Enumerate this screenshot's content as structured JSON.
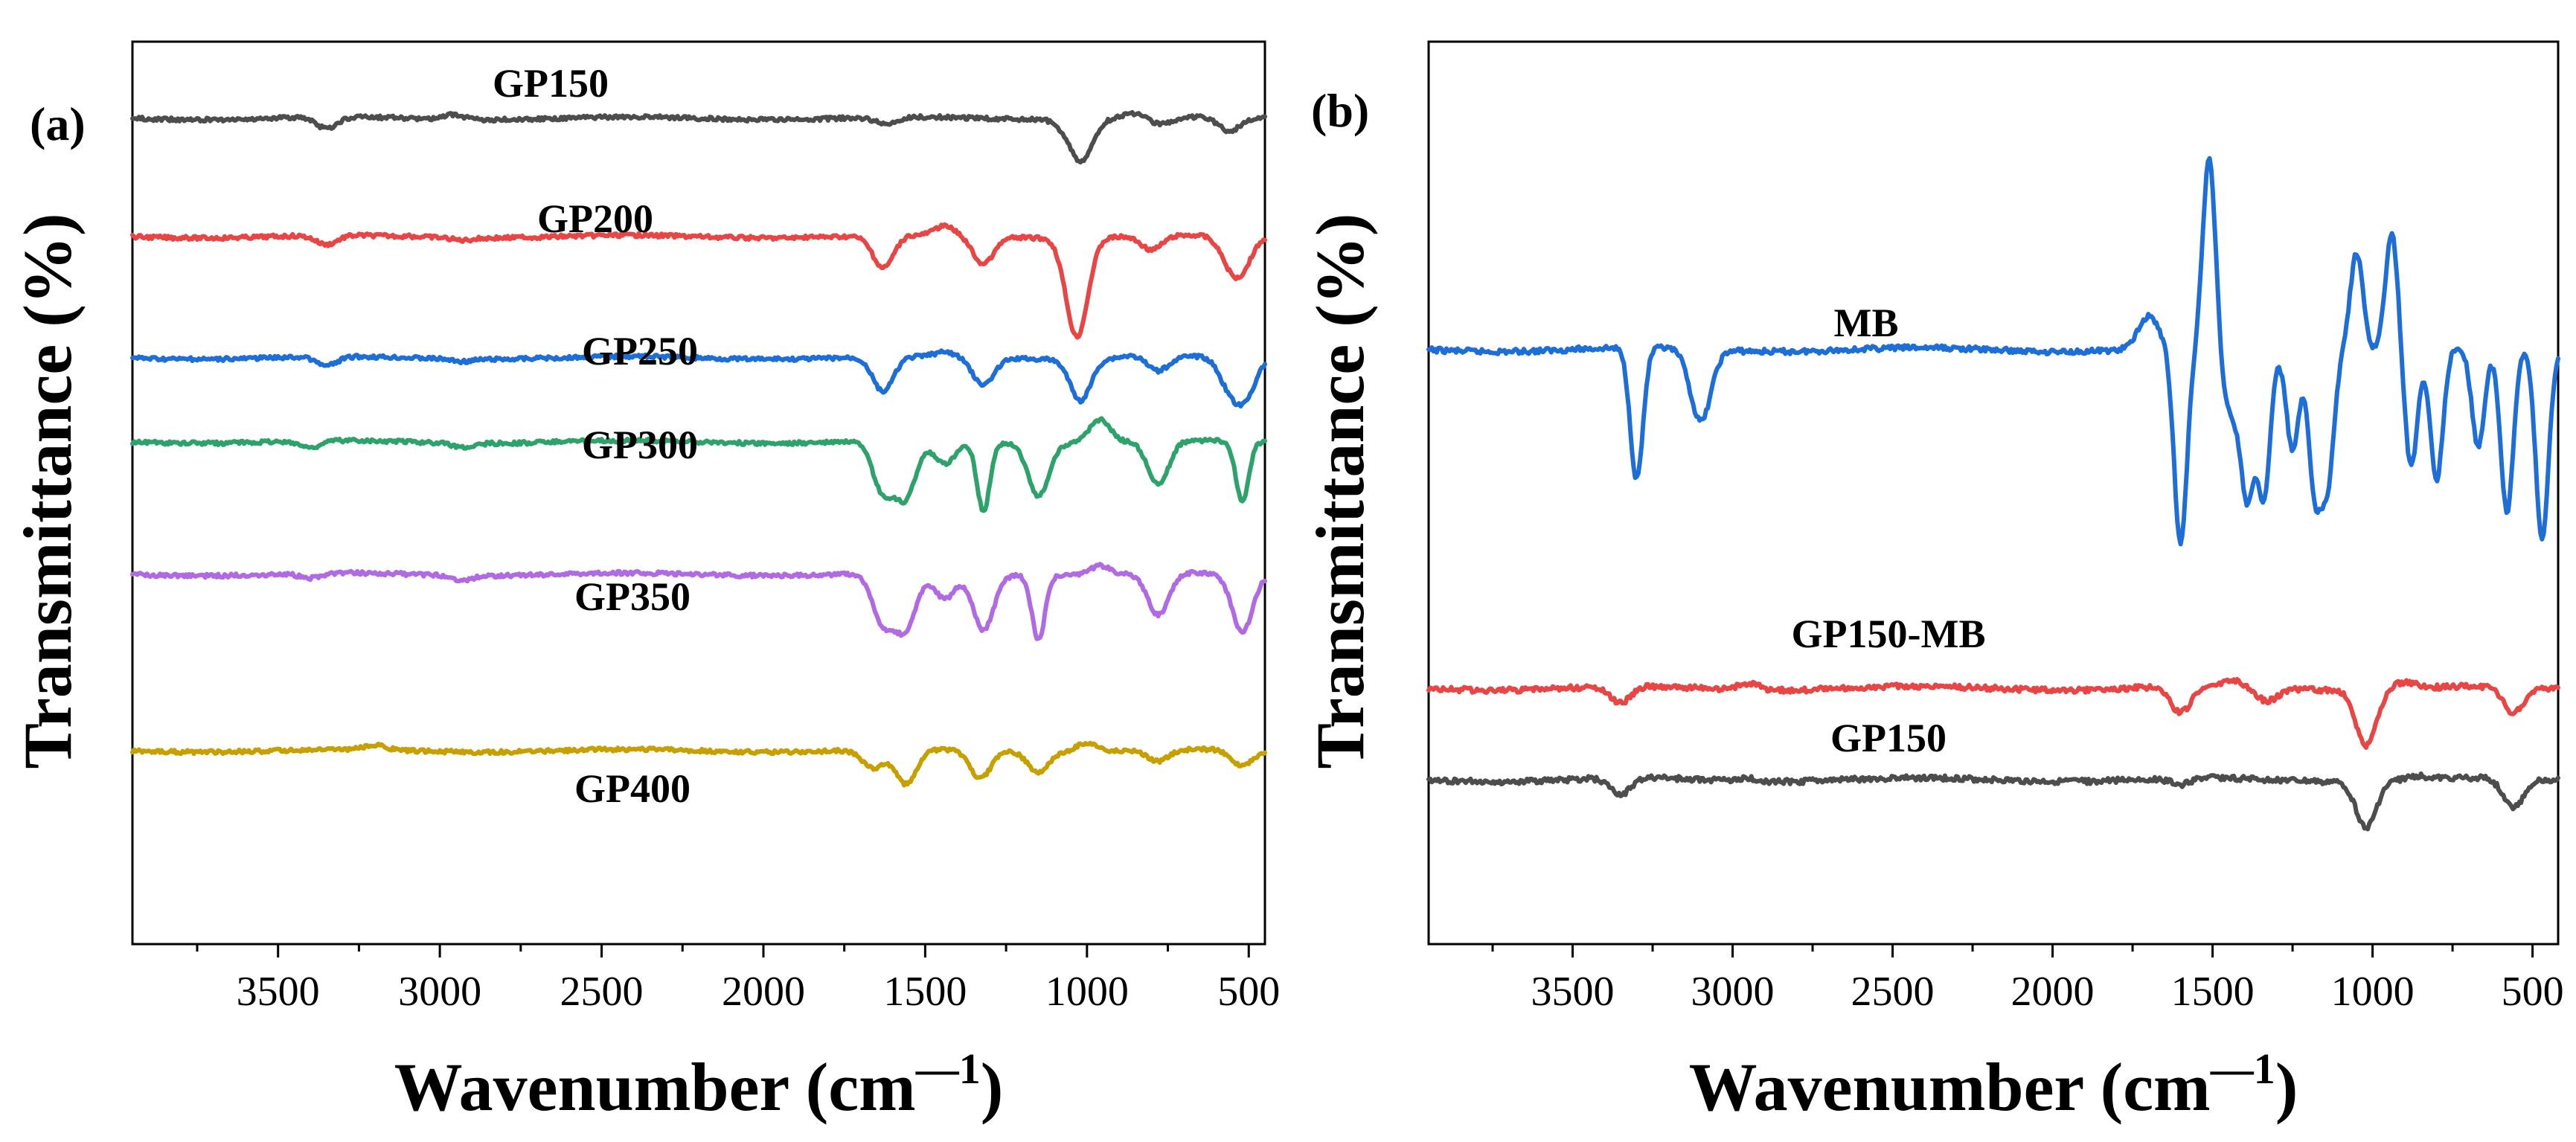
{
  "chart_data": [
    {
      "type": "line",
      "panel": "(a)",
      "xlabel": "Wavenumber (cm",
      "xlabel_sup": "—1",
      "xlabel_suffix": ")",
      "ylabel": "Transmittance (%)",
      "xlim": [
        3950,
        450
      ],
      "xaxis_reversed": true,
      "yaxis_ticks": false,
      "xticks": [
        "3500",
        "3000",
        "2500",
        "2000",
        "1500",
        "1000",
        "500"
      ],
      "xtick_values": [
        3500,
        3000,
        2500,
        2000,
        1500,
        1000,
        500
      ],
      "series": [
        {
          "name": "GP150",
          "color": "#4d4d4d",
          "baseline": 0,
          "peaks": [
            [
              3350,
              5
            ],
            [
              2960,
              -2
            ],
            [
              1620,
              3
            ],
            [
              1050,
              6
            ],
            [
              1010,
              15
            ],
            [
              860,
              -2
            ],
            [
              770,
              3
            ],
            [
              560,
              6
            ]
          ]
        },
        {
          "name": "GP200",
          "color": "#e84545",
          "baseline": 0,
          "peaks": [
            [
              3350,
              4
            ],
            [
              2930,
              1
            ],
            [
              1630,
              14
            ],
            [
              1440,
              -4
            ],
            [
              1320,
              12
            ],
            [
              1040,
              25
            ],
            [
              1020,
              20
            ],
            [
              800,
              6
            ],
            [
              560,
              10
            ],
            [
              520,
              12
            ]
          ]
        },
        {
          "name": "GP250",
          "color": "#1e6ed8",
          "baseline": 0,
          "peaks": [
            [
              3350,
              4
            ],
            [
              2930,
              1
            ],
            [
              1630,
              15
            ],
            [
              1440,
              -2
            ],
            [
              1320,
              12
            ],
            [
              1020,
              18
            ],
            [
              860,
              -1
            ],
            [
              780,
              6
            ],
            [
              560,
              12
            ],
            [
              510,
              16
            ]
          ]
        },
        {
          "name": "GP300",
          "color": "#2ea26b",
          "baseline": 0,
          "peaks": [
            [
              3400,
              3
            ],
            [
              2930,
              2
            ],
            [
              1630,
              22
            ],
            [
              1560,
              24
            ],
            [
              1440,
              10
            ],
            [
              1320,
              30
            ],
            [
              1150,
              23
            ],
            [
              960,
              -10
            ],
            [
              780,
              19
            ],
            [
              520,
              26
            ]
          ]
        },
        {
          "name": "GP350",
          "color": "#b06be3",
          "baseline": 0,
          "peaks": [
            [
              3400,
              2
            ],
            [
              2930,
              2
            ],
            [
              1630,
              22
            ],
            [
              1560,
              24
            ],
            [
              1440,
              11
            ],
            [
              1320,
              24
            ],
            [
              1150,
              28
            ],
            [
              960,
              -4
            ],
            [
              780,
              18
            ],
            [
              520,
              25
            ]
          ]
        },
        {
          "name": "GP400",
          "color": "#c7a000",
          "baseline": 0,
          "peaks": [
            [
              3200,
              -2
            ],
            [
              1660,
              8
            ],
            [
              1560,
              15
            ],
            [
              1330,
              12
            ],
            [
              1150,
              9
            ],
            [
              1000,
              -4
            ],
            [
              780,
              5
            ],
            [
              520,
              7
            ]
          ]
        }
      ]
    },
    {
      "type": "line",
      "panel": "(b)",
      "xlabel": "Wavenumber (cm",
      "xlabel_sup": "—1",
      "xlabel_suffix": ")",
      "ylabel": "Transmittance (%)",
      "xlim": [
        3950,
        420
      ],
      "xaxis_reversed": true,
      "yaxis_ticks": false,
      "xticks": [
        "3500",
        "3000",
        "2500",
        "2000",
        "1500",
        "1000",
        "500"
      ],
      "xtick_values": [
        3500,
        3000,
        2500,
        2000,
        1500,
        1000,
        500
      ],
      "series": [
        {
          "name": "MB",
          "color": "#1e6ed8",
          "baseline": 0,
          "peaks": [
            [
              3300,
              40
            ],
            [
              3100,
              22
            ],
            [
              1700,
              -10
            ],
            [
              1600,
              60
            ],
            [
              1510,
              -60
            ],
            [
              1440,
              20
            ],
            [
              1390,
              40
            ],
            [
              1340,
              45
            ],
            [
              1250,
              30
            ],
            [
              1180,
              42
            ],
            [
              1140,
              38
            ],
            [
              1050,
              -30
            ],
            [
              940,
              -36
            ],
            [
              880,
              36
            ],
            [
              800,
              40
            ],
            [
              670,
              30
            ],
            [
              580,
              50
            ],
            [
              470,
              58
            ]
          ]
        },
        {
          "name": "GP150-MB",
          "color": "#e84545",
          "baseline": 0,
          "peaks": [
            [
              3350,
              5
            ],
            [
              2950,
              -2
            ],
            [
              1600,
              8
            ],
            [
              1440,
              -2
            ],
            [
              1330,
              4
            ],
            [
              1020,
              17
            ],
            [
              900,
              -2
            ],
            [
              560,
              8
            ]
          ]
        },
        {
          "name": "GP150",
          "color": "#4d4d4d",
          "baseline": 0,
          "peaks": [
            [
              3350,
              5
            ],
            [
              2960,
              -1
            ],
            [
              1600,
              2
            ],
            [
              1020,
              14
            ],
            [
              860,
              -1
            ],
            [
              560,
              9
            ]
          ]
        }
      ]
    }
  ]
}
